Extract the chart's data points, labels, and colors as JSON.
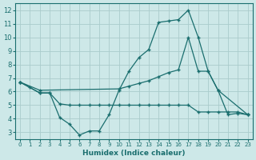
{
  "xlabel": "Humidex (Indice chaleur)",
  "bg_color": "#cde8e8",
  "grid_color": "#aacccc",
  "line_color": "#1a6e6e",
  "xlim": [
    -0.5,
    23.5
  ],
  "ylim": [
    2.5,
    12.5
  ],
  "xticks": [
    0,
    1,
    2,
    3,
    4,
    5,
    6,
    7,
    8,
    9,
    10,
    11,
    12,
    13,
    14,
    15,
    16,
    17,
    18,
    19,
    20,
    21,
    22,
    23
  ],
  "yticks": [
    3,
    4,
    5,
    6,
    7,
    8,
    9,
    10,
    11,
    12
  ],
  "line1_x": [
    0,
    1,
    2,
    3,
    4,
    5,
    6,
    7,
    8,
    9,
    10,
    11,
    12,
    13,
    14,
    15,
    16,
    17,
    18,
    19,
    20,
    21,
    22,
    23
  ],
  "line1_y": [
    6.7,
    6.3,
    5.9,
    5.9,
    4.1,
    3.6,
    2.8,
    3.1,
    3.1,
    4.3,
    6.1,
    7.5,
    8.5,
    9.1,
    11.1,
    11.2,
    11.3,
    12.0,
    10.0,
    7.5,
    6.1,
    4.3,
    4.4,
    4.3
  ],
  "line2_x": [
    0,
    2,
    10,
    11,
    12,
    13,
    14,
    15,
    16,
    17,
    18,
    19,
    20,
    23
  ],
  "line2_y": [
    6.7,
    6.1,
    6.2,
    6.4,
    6.6,
    6.8,
    7.1,
    7.4,
    7.6,
    10.0,
    7.5,
    7.5,
    6.1,
    4.3
  ],
  "line3_x": [
    0,
    2,
    3,
    4,
    5,
    6,
    7,
    8,
    9,
    10,
    11,
    12,
    13,
    14,
    15,
    16,
    17,
    18,
    19,
    20,
    21,
    22,
    23
  ],
  "line3_y": [
    6.7,
    5.9,
    5.9,
    5.1,
    5.0,
    5.0,
    5.0,
    5.0,
    5.0,
    5.0,
    5.0,
    5.0,
    5.0,
    5.0,
    5.0,
    5.0,
    5.0,
    4.5,
    4.5,
    4.5,
    4.5,
    4.5,
    4.3
  ]
}
